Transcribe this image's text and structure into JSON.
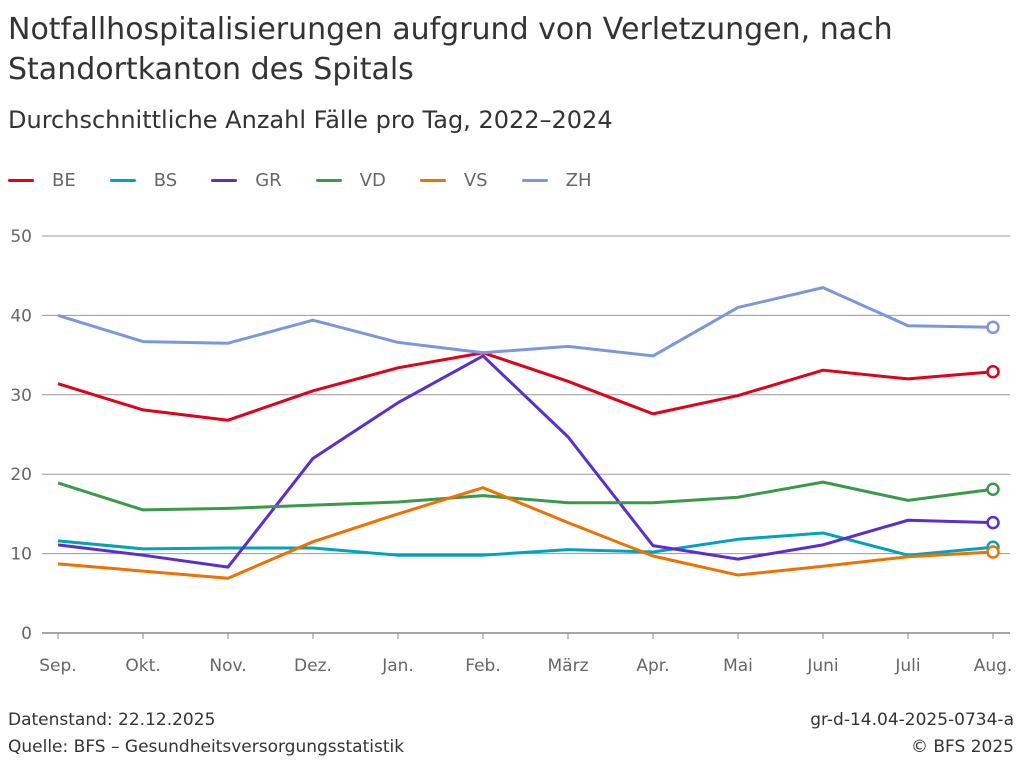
{
  "title": "Notfallhospitalisierungen aufgrund von Verletzungen, nach Standortkanton des Spitals",
  "subtitle": "Durchschnittliche Anzahl Fälle pro Tag, 2022–2024",
  "footer": {
    "datenstand": "Datenstand: 22.12.2025",
    "quelle": "Quelle: BFS – Gesundheitsversorgungsstatistik",
    "code": "gr-d-14.04-2025-0734-a",
    "copyright": "© BFS 2025"
  },
  "chart_data": {
    "type": "line",
    "categories": [
      "Sep.",
      "Okt.",
      "Nov.",
      "Dez.",
      "Jan.",
      "Feb.",
      "März",
      "Apr.",
      "Mai",
      "Juni",
      "Juli",
      "Aug."
    ],
    "ylim": [
      0,
      50
    ],
    "yticks": [
      0,
      10,
      20,
      30,
      40,
      50
    ],
    "grid": true,
    "legend": "top-left",
    "last_point_marker": "open-circle",
    "series": [
      {
        "name": "BE",
        "color": "#e2001a",
        "values": [
          31.4,
          28.1,
          26.8,
          30.5,
          33.4,
          35.3,
          31.7,
          27.6,
          29.9,
          33.1,
          32.0,
          32.9
        ]
      },
      {
        "name": "BS",
        "color": "#00a3bc",
        "values": [
          11.6,
          10.6,
          10.7,
          10.7,
          9.8,
          9.8,
          10.5,
          10.2,
          11.8,
          12.6,
          9.8,
          10.8
        ]
      },
      {
        "name": "GR",
        "color": "#5a2ed6",
        "values": [
          11.1,
          9.8,
          8.3,
          22.0,
          29.0,
          34.9,
          24.7,
          11.0,
          9.3,
          11.1,
          14.2,
          13.9
        ]
      },
      {
        "name": "VD",
        "color": "#3a9a4a",
        "values": [
          18.9,
          15.5,
          15.7,
          16.1,
          16.5,
          17.3,
          16.4,
          16.4,
          17.1,
          19.0,
          16.7,
          18.1
        ]
      },
      {
        "name": "VS",
        "color": "#f07000",
        "values": [
          8.7,
          7.8,
          6.9,
          11.5,
          15.0,
          18.3,
          13.9,
          9.7,
          7.3,
          8.4,
          9.6,
          10.2
        ]
      },
      {
        "name": "ZH",
        "color": "#7b97df",
        "values": [
          40.0,
          36.7,
          36.5,
          39.4,
          36.6,
          35.3,
          36.1,
          34.9,
          41.0,
          43.5,
          38.7,
          38.5
        ]
      }
    ]
  }
}
